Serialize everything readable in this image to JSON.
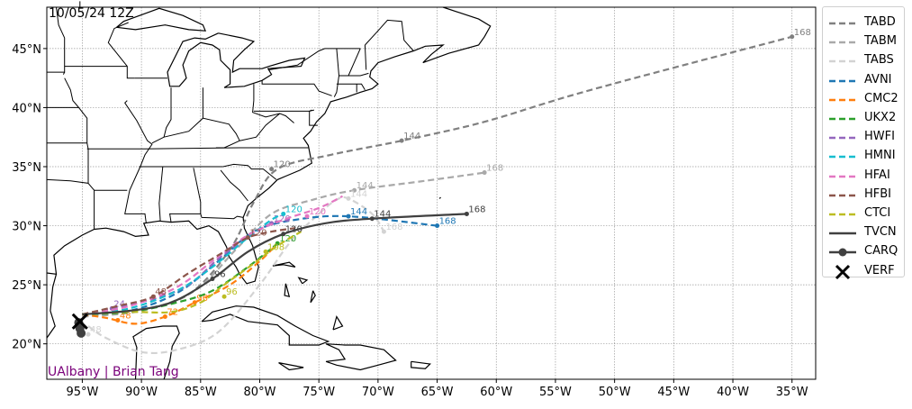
{
  "title": "10/05/24 12Z",
  "credit": "UAlbany | Brian Tang",
  "map": {
    "lon_range": [
      -98,
      -33
    ],
    "lat_range": [
      17,
      48.5
    ],
    "lon_ticks": [
      "95°W",
      "90°W",
      "85°W",
      "80°W",
      "75°W",
      "70°W",
      "65°W",
      "60°W",
      "55°W",
      "50°W",
      "45°W",
      "40°W",
      "35°W"
    ],
    "lon_tick_values": [
      -95,
      -90,
      -85,
      -80,
      -75,
      -70,
      -65,
      -60,
      -55,
      -50,
      -45,
      -40,
      -35
    ],
    "lat_ticks": [
      "20°N",
      "25°N",
      "30°N",
      "35°N",
      "40°N",
      "45°N"
    ],
    "lat_tick_values": [
      20,
      25,
      30,
      35,
      40,
      45
    ],
    "grid": true
  },
  "legend": {
    "placement": "right",
    "items": [
      {
        "name": "TABD",
        "color": "#808080",
        "style": "dashed"
      },
      {
        "name": "TABM",
        "color": "#a9a9a9",
        "style": "dashed"
      },
      {
        "name": "TABS",
        "color": "#d3d3d3",
        "style": "dashed"
      },
      {
        "name": "AVNI",
        "color": "#1f77b4",
        "style": "dashed"
      },
      {
        "name": "CMC2",
        "color": "#ff7f0e",
        "style": "dashed"
      },
      {
        "name": "UKX2",
        "color": "#2ca02c",
        "style": "dashed"
      },
      {
        "name": "HWFI",
        "color": "#9467bd",
        "style": "dashed"
      },
      {
        "name": "HMNI",
        "color": "#17becf",
        "style": "dashed"
      },
      {
        "name": "HFAI",
        "color": "#e377c2",
        "style": "dashed"
      },
      {
        "name": "HFBI",
        "color": "#8c564b",
        "style": "dashed"
      },
      {
        "name": "CTCI",
        "color": "#bcbd22",
        "style": "dashed"
      },
      {
        "name": "TVCN",
        "color": "#404040",
        "style": "solid"
      },
      {
        "name": "CARQ",
        "color": "#404040",
        "style": "solid-marker"
      },
      {
        "name": "VERF",
        "color": "#000000",
        "style": "x-marker"
      }
    ]
  },
  "tracks": [
    {
      "name": "TABD",
      "color": "#808080",
      "pts": [
        [
          -95,
          22.3
        ],
        [
          -90.5,
          22.8
        ],
        [
          -86,
          24.2
        ],
        [
          -82.5,
          28
        ],
        [
          -80.5,
          32
        ],
        [
          -78.5,
          34.8
        ],
        [
          -74,
          36
        ],
        [
          -68,
          37.2
        ],
        [
          -61,
          38.8
        ],
        [
          -52,
          41.5
        ],
        [
          -35,
          46
        ]
      ],
      "labels": [
        [
          "120",
          -79,
          34.8
        ],
        [
          "144",
          -68,
          37.2
        ],
        [
          "168",
          -35,
          46
        ]
      ]
    },
    {
      "name": "TABM",
      "color": "#a9a9a9",
      "pts": [
        [
          -95,
          22.3
        ],
        [
          -90,
          22.8
        ],
        [
          -85.5,
          24.5
        ],
        [
          -82,
          28
        ],
        [
          -79,
          31
        ],
        [
          -75.5,
          32.2
        ],
        [
          -72,
          33
        ],
        [
          -66,
          33.8
        ],
        [
          -61,
          34.5
        ]
      ],
      "labels": [
        [
          "144",
          -72,
          33
        ],
        [
          "168",
          -61,
          34.5
        ]
      ]
    },
    {
      "name": "TABS",
      "color": "#d3d3d3",
      "pts": [
        [
          -94.5,
          21.5
        ],
        [
          -93,
          20.5
        ],
        [
          -90,
          19.3
        ],
        [
          -87,
          19.5
        ],
        [
          -83.5,
          21
        ],
        [
          -80,
          25
        ],
        [
          -77.5,
          28.5
        ],
        [
          -75,
          31
        ],
        [
          -73.5,
          32.2
        ],
        [
          -72.5,
          32.3
        ],
        [
          -70.5,
          31
        ],
        [
          -69.5,
          29.5
        ]
      ],
      "labels": [
        [
          "48",
          -94.5,
          20.8
        ],
        [
          "144",
          -72.5,
          32.3
        ],
        [
          "168",
          -69.5,
          29.5
        ]
      ]
    },
    {
      "name": "AVNI",
      "color": "#1f77b4",
      "pts": [
        [
          -95,
          22.5
        ],
        [
          -91,
          22.8
        ],
        [
          -87,
          24.3
        ],
        [
          -83.5,
          27
        ],
        [
          -80.5,
          29.5
        ],
        [
          -77,
          30.5
        ],
        [
          -72.5,
          30.8
        ],
        [
          -65,
          30
        ]
      ],
      "labels": [
        [
          "144",
          -72.5,
          30.8
        ],
        [
          "168",
          -65,
          30
        ]
      ]
    },
    {
      "name": "CMC2",
      "color": "#ff7f0e",
      "pts": [
        [
          -95,
          22.5
        ],
        [
          -93,
          22.2
        ],
        [
          -90.5,
          21.7
        ],
        [
          -88,
          22.3
        ],
        [
          -85.5,
          23.5
        ],
        [
          -82.5,
          25
        ],
        [
          -80,
          27
        ],
        [
          -78.5,
          28.5
        ]
      ],
      "labels": [
        [
          "48",
          -92,
          22
        ],
        [
          "72",
          -88,
          22.3
        ],
        [
          "96",
          -85.5,
          23.5
        ]
      ]
    },
    {
      "name": "UKX2",
      "color": "#2ca02c",
      "pts": [
        [
          -95,
          22.5
        ],
        [
          -91,
          22.7
        ],
        [
          -87,
          23.5
        ],
        [
          -84,
          24.5
        ],
        [
          -81,
          26.5
        ],
        [
          -78.5,
          28.5
        ]
      ],
      "labels": [
        [
          "120",
          -78.5,
          28.5
        ]
      ]
    },
    {
      "name": "HWFI",
      "color": "#9467bd",
      "pts": [
        [
          -95,
          22.5
        ],
        [
          -92.5,
          23
        ],
        [
          -89,
          23.8
        ],
        [
          -86,
          25
        ],
        [
          -83.5,
          27.2
        ],
        [
          -81,
          29
        ],
        [
          -79,
          30.2
        ],
        [
          -77.5,
          30.5
        ]
      ],
      "labels": [
        [
          "24",
          -92.5,
          23
        ],
        [
          "120",
          -79,
          30.2
        ]
      ]
    },
    {
      "name": "HMNI",
      "color": "#17becf",
      "pts": [
        [
          -95,
          22.5
        ],
        [
          -91,
          23
        ],
        [
          -87,
          24.5
        ],
        [
          -84,
          26.5
        ],
        [
          -81,
          29
        ],
        [
          -79,
          30.5
        ],
        [
          -78,
          31
        ]
      ],
      "labels": [
        [
          "120",
          -78,
          31
        ]
      ]
    },
    {
      "name": "HFAI",
      "color": "#e377c2",
      "pts": [
        [
          -95,
          22.5
        ],
        [
          -91,
          23.2
        ],
        [
          -87,
          24.8
        ],
        [
          -84,
          27
        ],
        [
          -81,
          29.2
        ],
        [
          -78,
          30.5
        ],
        [
          -75,
          31.5
        ],
        [
          -73,
          32.5
        ]
      ],
      "labels": [
        [
          "120",
          -76,
          30.8
        ]
      ]
    },
    {
      "name": "HFBI",
      "color": "#8c564b",
      "pts": [
        [
          -95,
          22.5
        ],
        [
          -92,
          23.2
        ],
        [
          -89,
          24
        ],
        [
          -86,
          26
        ],
        [
          -83,
          27.8
        ],
        [
          -81,
          29
        ],
        [
          -79,
          29.5
        ],
        [
          -77,
          29.8
        ]
      ],
      "labels": [
        [
          "48",
          -89,
          24
        ],
        [
          "120",
          -81,
          29
        ]
      ]
    },
    {
      "name": "CTCI",
      "color": "#bcbd22",
      "pts": [
        [
          -95,
          22.5
        ],
        [
          -91,
          22.7
        ],
        [
          -87.5,
          22.7
        ],
        [
          -85,
          23.5
        ],
        [
          -83,
          25
        ],
        [
          -80.5,
          26.8
        ],
        [
          -78.5,
          28.3
        ],
        [
          -76.5,
          29.5
        ]
      ],
      "labels": [
        [
          "96",
          -83,
          24
        ],
        [
          "108",
          -79.5,
          27.8
        ]
      ]
    },
    {
      "name": "TVCN",
      "color": "#404040",
      "pts": [
        [
          -95,
          22.5
        ],
        [
          -91,
          22.8
        ],
        [
          -87.5,
          23.5
        ],
        [
          -84,
          25.5
        ],
        [
          -81,
          27.8
        ],
        [
          -78,
          29.3
        ],
        [
          -74.5,
          30.2
        ],
        [
          -70.5,
          30.6
        ],
        [
          -62.5,
          31
        ]
      ],
      "labels": [
        [
          "96",
          -84,
          25.5
        ],
        [
          "120",
          -78,
          29.3
        ],
        [
          "144",
          -70.5,
          30.6
        ],
        [
          "168",
          -62.5,
          31
        ]
      ]
    }
  ],
  "carq": [
    [
      -95.3,
      21.8
    ],
    [
      -95.2,
      21.3
    ],
    [
      -95.1,
      20.9
    ]
  ],
  "verf": [
    -95.2,
    21.9
  ]
}
